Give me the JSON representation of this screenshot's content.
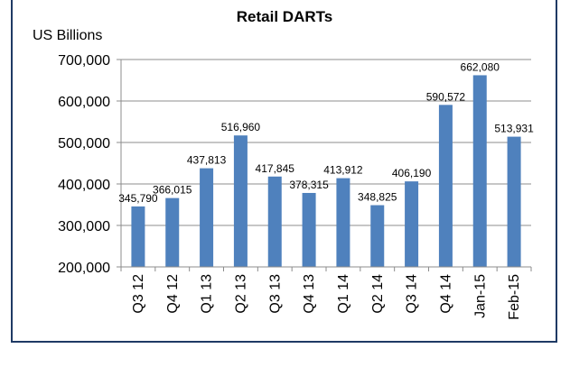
{
  "chart_data": {
    "type": "bar",
    "title": "Retail DARTs",
    "unit_label": "US Billions",
    "categories": [
      "Q3 12",
      "Q4 12",
      "Q1 13",
      "Q2 13",
      "Q3 13",
      "Q4 13",
      "Q1 14",
      "Q2 14",
      "Q3 14",
      "Q4 14",
      "Jan-15",
      "Feb-15"
    ],
    "values": [
      345790,
      366015,
      437813,
      516960,
      417845,
      378315,
      413912,
      348825,
      406190,
      590572,
      662080,
      513931
    ],
    "value_labels": [
      "345,790",
      "366,015",
      "437,813",
      "516,960",
      "417,845",
      "378,315",
      "413,912",
      "348,825",
      "406,190",
      "590,572",
      "662,080",
      "513,931"
    ],
    "ylim": [
      200000,
      700000
    ],
    "yticks": [
      200000,
      300000,
      400000,
      500000,
      600000,
      700000
    ],
    "ytick_labels": [
      "200,000",
      "300,000",
      "400,000",
      "500,000",
      "600,000",
      "700,000"
    ],
    "bar_color": "#4f81bd",
    "grid": true,
    "legend": false
  }
}
